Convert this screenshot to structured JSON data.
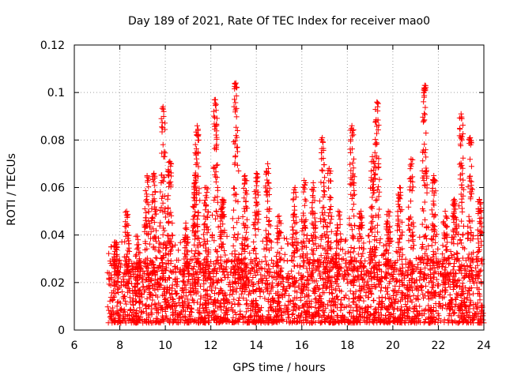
{
  "chart_data": {
    "type": "scatter",
    "title": "Day 189 of 2021, Rate Of TEC Index for receiver mao0",
    "xlabel": "GPS time / hours",
    "ylabel": "ROTI / TECUs",
    "xlim": [
      6,
      24
    ],
    "ylim": [
      0,
      0.12
    ],
    "xticks": [
      6,
      8,
      10,
      12,
      14,
      16,
      18,
      20,
      22,
      24
    ],
    "yticks": [
      0,
      0.02,
      0.04,
      0.06,
      0.08,
      0.1,
      0.12
    ],
    "xtick_labels": [
      "6",
      "8",
      "10",
      "12",
      "14",
      "16",
      "18",
      "20",
      "22",
      "24"
    ],
    "ytick_labels": [
      "0",
      "0.02",
      "0.04",
      "0.06",
      "0.08",
      "0.1",
      "0.12"
    ],
    "grid": true,
    "marker": "+",
    "color": "#ff0000",
    "data_start_hour": 7.45,
    "data_end_hour": 24,
    "baseline_range": [
      0.003,
      0.03
    ],
    "spikes": [
      {
        "x": 7.8,
        "max": 0.037
      },
      {
        "x": 8.3,
        "max": 0.05
      },
      {
        "x": 8.8,
        "max": 0.038
      },
      {
        "x": 9.2,
        "max": 0.065
      },
      {
        "x": 9.5,
        "max": 0.066
      },
      {
        "x": 9.9,
        "max": 0.094
      },
      {
        "x": 10.2,
        "max": 0.071
      },
      {
        "x": 10.9,
        "max": 0.045
      },
      {
        "x": 11.3,
        "max": 0.065
      },
      {
        "x": 11.4,
        "max": 0.086
      },
      {
        "x": 11.8,
        "max": 0.06
      },
      {
        "x": 12.2,
        "max": 0.097
      },
      {
        "x": 12.5,
        "max": 0.055
      },
      {
        "x": 13.1,
        "max": 0.104
      },
      {
        "x": 13.5,
        "max": 0.065
      },
      {
        "x": 14.0,
        "max": 0.066
      },
      {
        "x": 14.5,
        "max": 0.07
      },
      {
        "x": 15.0,
        "max": 0.048
      },
      {
        "x": 15.7,
        "max": 0.06
      },
      {
        "x": 16.1,
        "max": 0.063
      },
      {
        "x": 16.5,
        "max": 0.062
      },
      {
        "x": 16.9,
        "max": 0.081
      },
      {
        "x": 17.2,
        "max": 0.068
      },
      {
        "x": 17.6,
        "max": 0.05
      },
      {
        "x": 18.2,
        "max": 0.086
      },
      {
        "x": 18.6,
        "max": 0.05
      },
      {
        "x": 19.1,
        "max": 0.073
      },
      {
        "x": 19.3,
        "max": 0.096
      },
      {
        "x": 19.8,
        "max": 0.05
      },
      {
        "x": 20.3,
        "max": 0.06
      },
      {
        "x": 20.8,
        "max": 0.072
      },
      {
        "x": 21.4,
        "max": 0.103
      },
      {
        "x": 21.8,
        "max": 0.065
      },
      {
        "x": 22.3,
        "max": 0.05
      },
      {
        "x": 22.7,
        "max": 0.055
      },
      {
        "x": 23.0,
        "max": 0.091
      },
      {
        "x": 23.4,
        "max": 0.081
      },
      {
        "x": 23.8,
        "max": 0.055
      }
    ]
  }
}
